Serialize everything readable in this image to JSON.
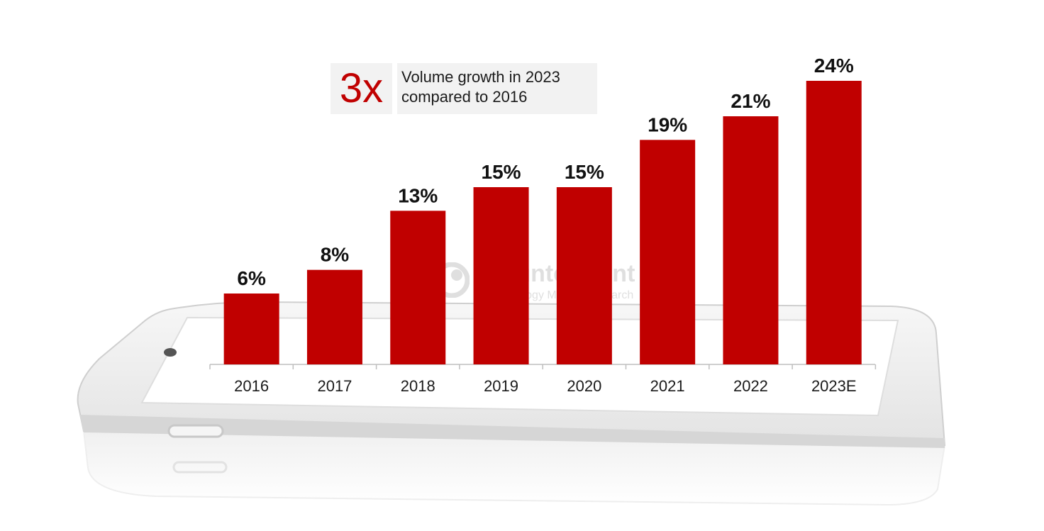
{
  "callout": {
    "multiplier": "3x",
    "line1": "Volume growth in 2023",
    "line2": "compared to 2016"
  },
  "watermark": {
    "brand": "Counterpoint",
    "tagline": "Technology Market Research"
  },
  "colors": {
    "bar": "#c00000",
    "callout_bg": "#f2f2f2",
    "label": "#111111"
  },
  "chart_data": {
    "type": "bar",
    "categories": [
      "2016",
      "2017",
      "2018",
      "2019",
      "2020",
      "2021",
      "2022",
      "2023E"
    ],
    "values": [
      6,
      8,
      13,
      15,
      15,
      19,
      21,
      24
    ],
    "value_labels": [
      "6%",
      "8%",
      "13%",
      "15%",
      "15%",
      "19%",
      "21%",
      "24%"
    ],
    "unit": "%",
    "ylim": [
      0,
      24
    ],
    "grid": false,
    "legend": "none"
  }
}
